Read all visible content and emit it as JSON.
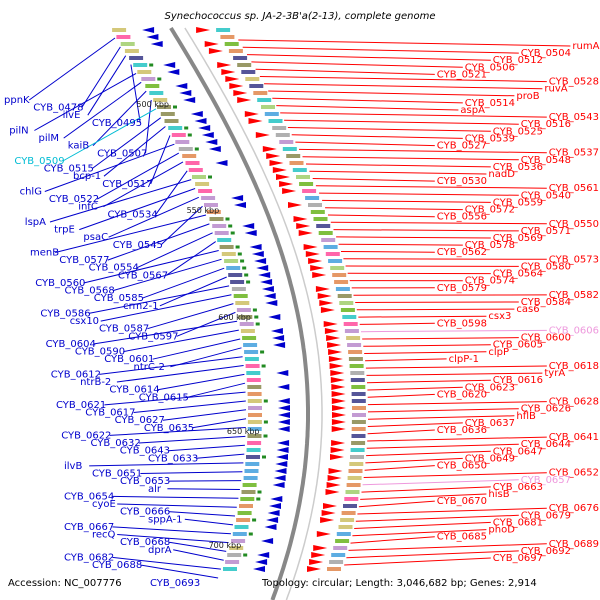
{
  "title": "Synechococcus sp. JA-2-3B'a(2-13), complete genome",
  "footer": {
    "accession": "Accession: NC_007776",
    "accession_gene": "CYB_0693",
    "topology": "Topology: circular; Length: 3,046,682 bp; Genes: 2,914"
  },
  "colors": {
    "forward_strand": "#ff0000",
    "reverse_strand": "#0000cc",
    "highlight_cyan": "#00bcd4",
    "highlight_pink": "#ee99dd",
    "axis": "#888888"
  },
  "scale_labels": [
    "500 kbp",
    "550 kbp",
    "600 kbp",
    "650 kbp",
    "700 kbp"
  ],
  "left_labels": [
    "ppnK",
    "CYB_0478",
    "ilvE",
    "CYB_0495",
    "pilN",
    "pilM",
    "kaiB",
    "CYB_0507",
    "CYB_0509",
    "CYB_0515",
    "bcp-1",
    "CYB_0517",
    "chlG",
    "CYB_0522",
    "infC",
    "CYB_0534",
    "lspA",
    "trpE",
    "psaC",
    "CYB_0545",
    "menB",
    "CYB_0577",
    "CYB_0554",
    "CYB_0567",
    "CYB_0560",
    "CYB_0568",
    "CYB_0585",
    "crm2-1",
    "CYB_0586",
    "csx10",
    "CYB_0587",
    "CYB_0597",
    "CYB_0604",
    "CYB_0590",
    "CYB_0601",
    "ntrC-2",
    "CYB_0612",
    "ntrB-2",
    "CYB_0614",
    "CYB_0615",
    "CYB_0621",
    "CYB_0617",
    "CYB_0627",
    "CYB_0635",
    "CYB_0622",
    "CYB_0632",
    "CYB_0643",
    "CYB_0633",
    "ilvB",
    "CYB_0651",
    "CYB_0653",
    "alr",
    "CYB_0654",
    "cyoE",
    "CYB_0666",
    "sppA-1",
    "CYB_0667",
    "recQ",
    "CYB_0668",
    "dprA",
    "CYB_0682",
    "CYB_0688"
  ],
  "right_labels": [
    "rumA",
    "CYB_0504",
    "CYB_0512",
    "CYB_0506",
    "CYB_0521",
    "CYB_0528",
    "ruvA",
    "proB",
    "CYB_0514",
    "aspA",
    "CYB_0543",
    "CYB_0516",
    "CYB_0525",
    "CYB_0539",
    "CYB_0527",
    "CYB_0537",
    "CYB_0548",
    "CYB_0536",
    "nadD",
    "CYB_0530",
    "CYB_0561",
    "CYB_0540",
    "CYB_0559",
    "CYB_0572",
    "CYB_0556",
    "CYB_0550",
    "CYB_0571",
    "CYB_0569",
    "CYB_0578",
    "CYB_0562",
    "CYB_0573",
    "CYB_0580",
    "CYB_0564",
    "CYB_0574",
    "CYB_0579",
    "CYB_0582",
    "CYB_0584",
    "cas6",
    "csx3",
    "CYB_0598",
    "CYB_0606",
    "CYB_0600",
    "CYB_0605",
    "clpP",
    "clpP-1",
    "CYB_0618",
    "tyrA",
    "CYB_0616",
    "CYB_0623",
    "CYB_0620",
    "CYB_0628",
    "CYB_0626",
    "hflB",
    "CYB_0637",
    "CYB_0636",
    "CYB_0641",
    "CYB_0644",
    "CYB_0647",
    "CYB_0649",
    "CYB_0650",
    "CYB_0652",
    "CYB_0657",
    "CYB_0663",
    "hisB",
    "CYB_0670",
    "CYB_0676",
    "CYB_0679",
    "CYB_0681",
    "phoD",
    "CYB_0685",
    "CYB_0689",
    "CYB_0692",
    "CYB_0697"
  ]
}
